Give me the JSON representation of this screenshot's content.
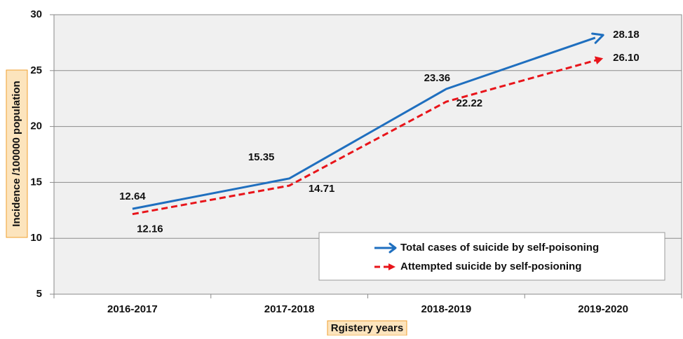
{
  "chart_data": {
    "type": "line",
    "categories": [
      "2016-2017",
      "2017-2018",
      "2018-2019",
      "2019-2020"
    ],
    "series": [
      {
        "name": "Total cases of suicide by self-poisoning",
        "values": [
          12.64,
          15.35,
          23.36,
          28.18
        ],
        "labels": [
          "12.64",
          "15.35",
          "23.36",
          "28.18"
        ],
        "color": "#1f6fbf",
        "style": "solid"
      },
      {
        "name": "Attempted suicide by self-posioning",
        "values": [
          12.16,
          14.71,
          22.22,
          26.1
        ],
        "labels": [
          "12.16",
          "14.71",
          "22.22",
          "26.10"
        ],
        "color": "#e8141a",
        "style": "dashed"
      }
    ],
    "xlabel": "Rgistery years",
    "ylabel": "Incidence /100000 population",
    "ylim": [
      5,
      30
    ],
    "yticks": [
      "5",
      "10",
      "15",
      "20",
      "25",
      "30"
    ],
    "grid": true,
    "legend_position": "bottom-right",
    "plot_background": "#f0f0f0",
    "axis_label_background": "#fce4bd",
    "axis_label_border": "#f0a030"
  }
}
